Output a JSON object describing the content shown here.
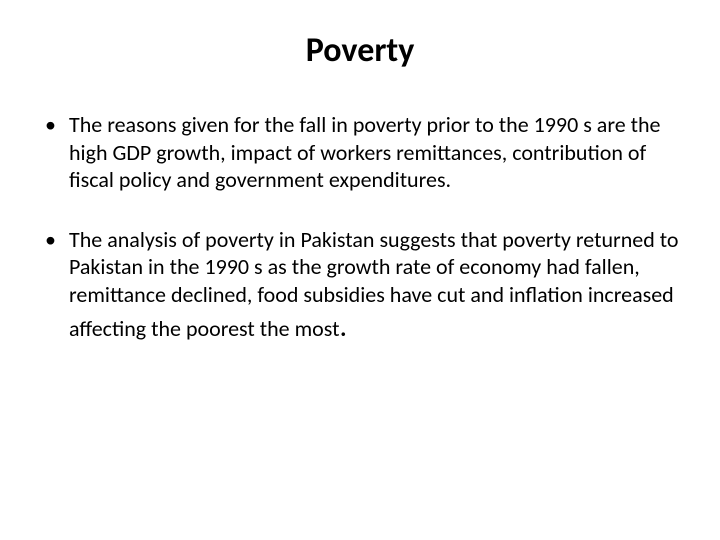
{
  "slide": {
    "title": "Poverty",
    "bullets": [
      {
        "text": "The reasons given for the fall in poverty prior to the 1990 s are the high GDP growth, impact of workers remittances, contribution of fiscal policy and government expenditures."
      },
      {
        "text": "The analysis of poverty in Pakistan suggests that poverty returned to Pakistan in the 1990 s as the growth rate of economy had fallen, remittance declined, food subsidies have cut and inflation increased affecting the poorest the most",
        "trailing": "."
      }
    ]
  },
  "styles": {
    "background_color": "#ffffff",
    "text_color": "#000000",
    "title_fontsize": 34,
    "body_fontsize": 22,
    "font_family": "Calibri, Arial, sans-serif"
  }
}
